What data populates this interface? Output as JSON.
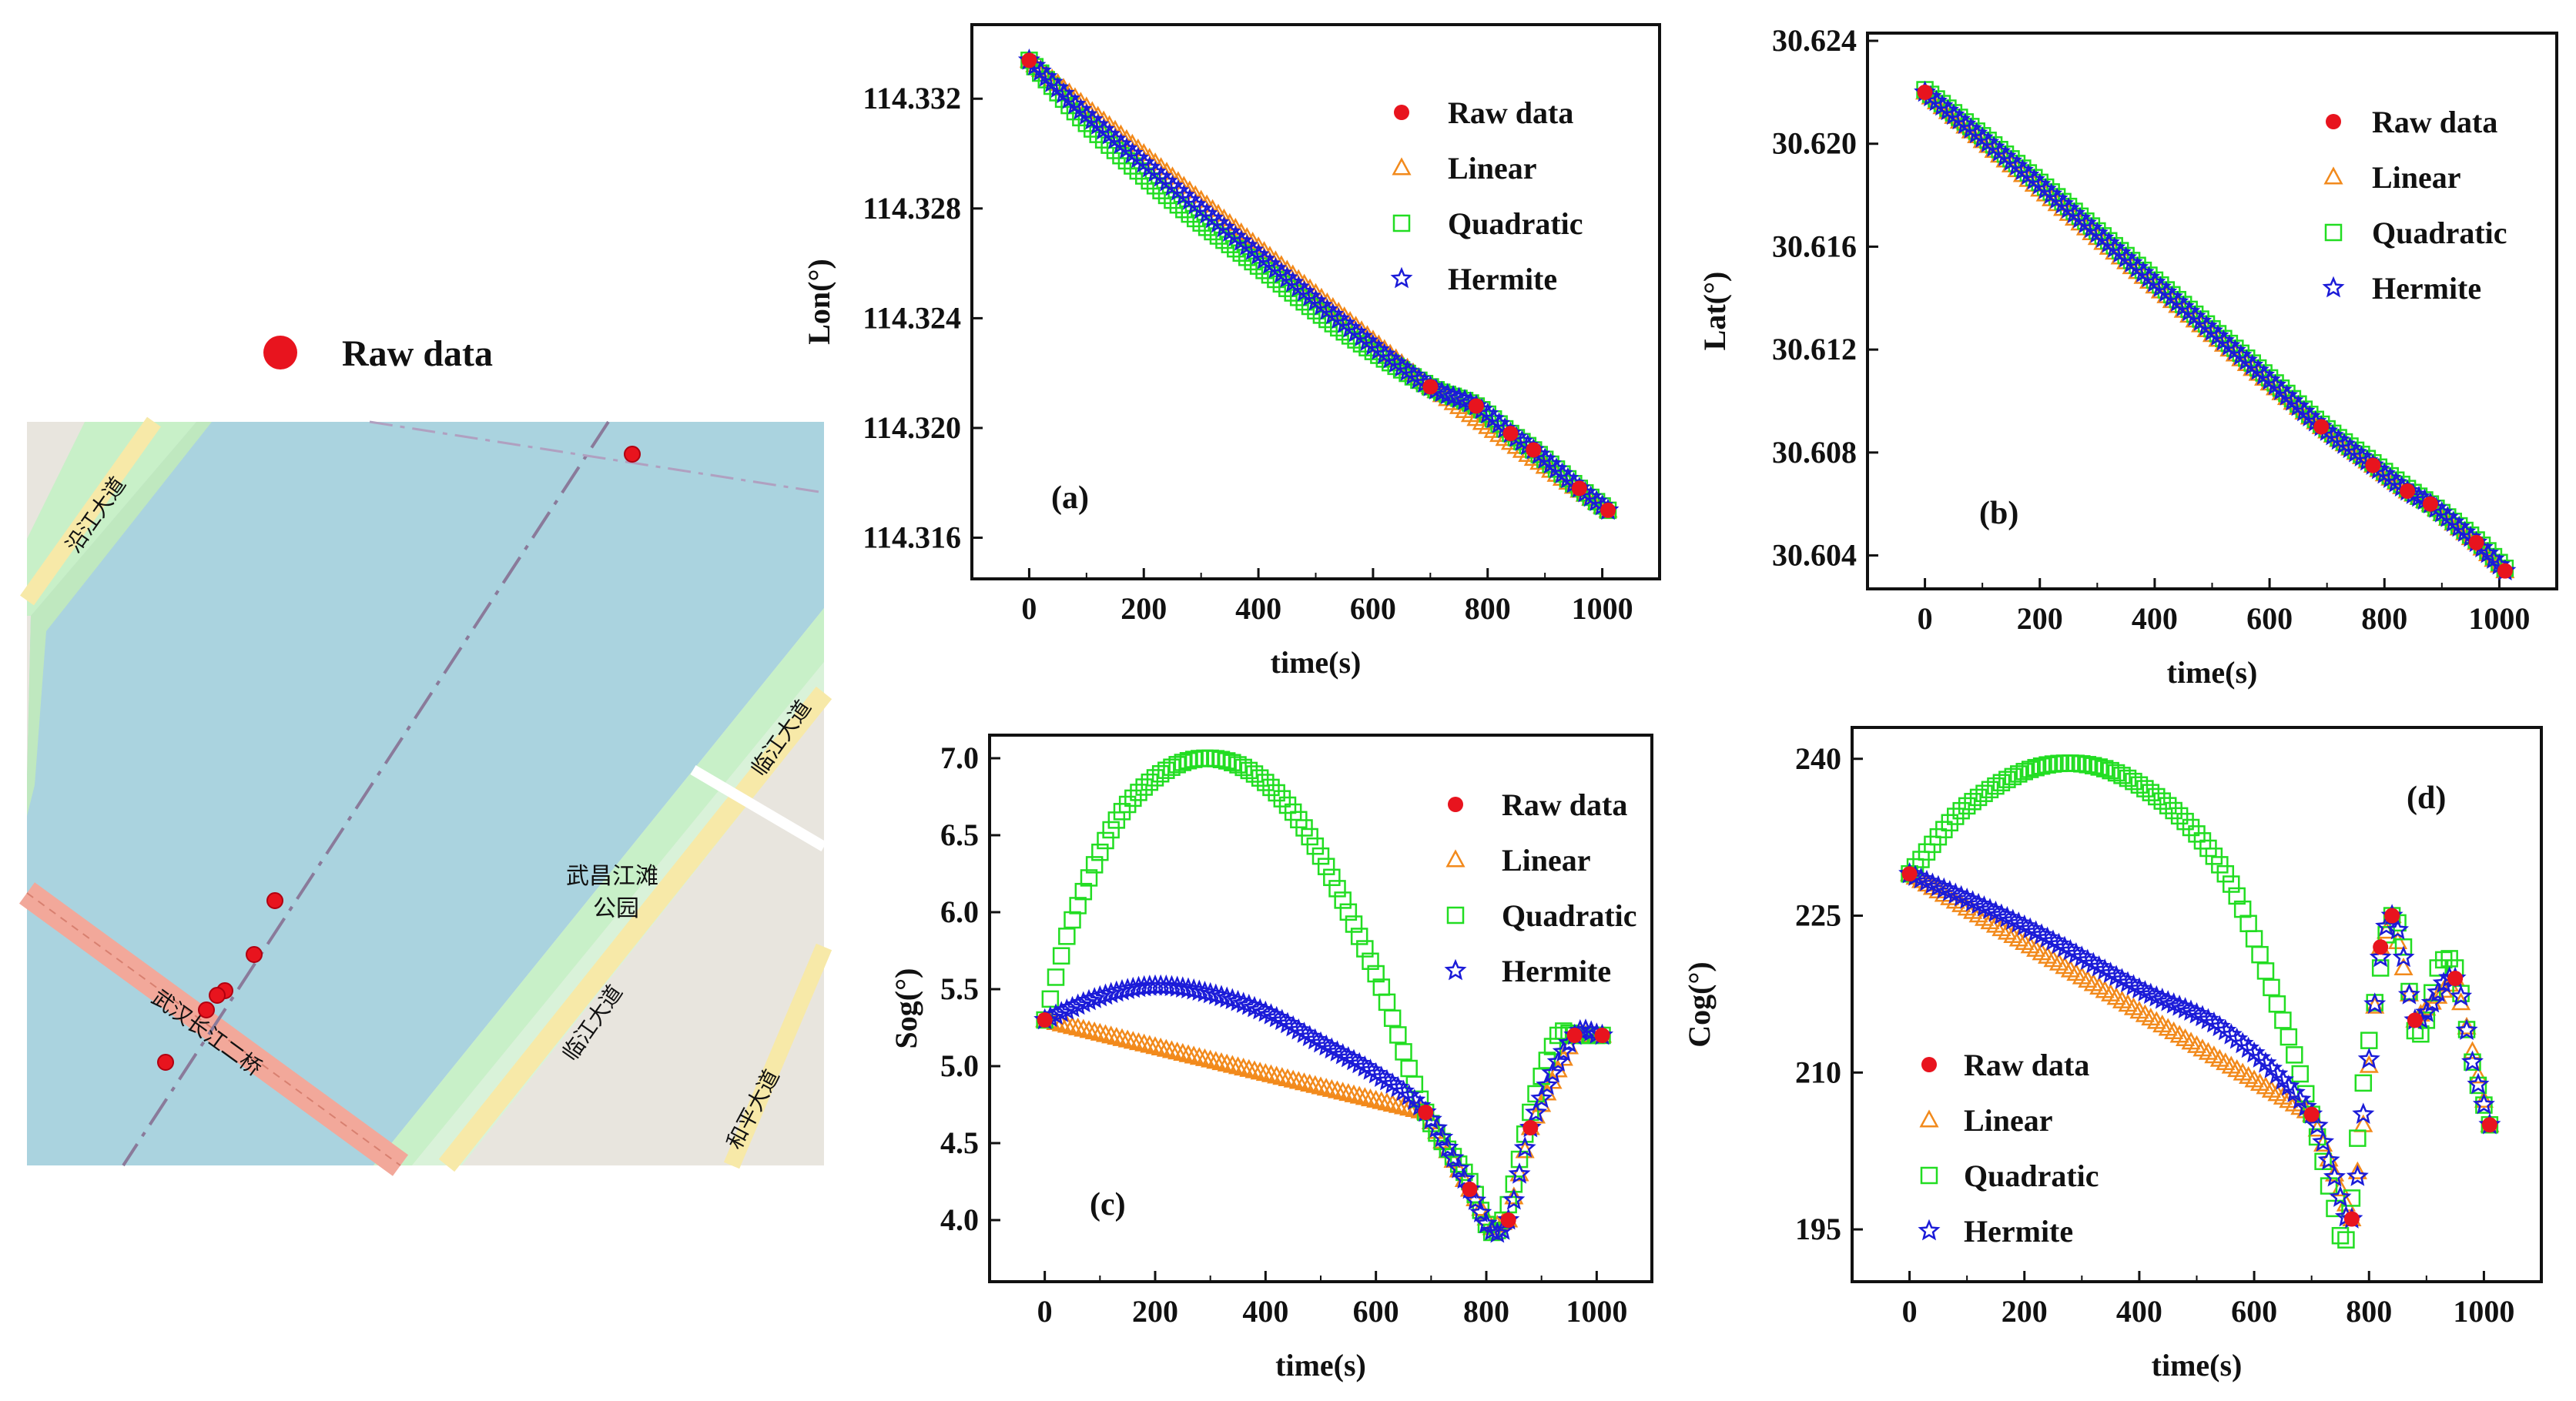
{
  "figure": {
    "map_legend_label": "Raw data",
    "map_labels": [
      "沿江大道",
      "武昌江滩",
      "公园",
      "临江大道",
      "临江大道",
      "和平大道",
      "武汉长江二桥"
    ],
    "colors": {
      "raw": "#e8141e",
      "linear": "#f28a1c",
      "quadratic": "#22dd22",
      "hermite": "#1b1bd8",
      "water": "#aad3df",
      "land": "#e8e5de",
      "park": "#c8f0c8",
      "road_yellow": "#f7e9a8",
      "bridge": "#f2a89a"
    }
  },
  "chart_data": [
    {
      "id": "a",
      "type": "scatter",
      "panel_label": "(a)",
      "xlabel": "time(s)",
      "ylabel": "Lon(°)",
      "xlim": [
        -100,
        1100
      ],
      "ylim": [
        114.3145,
        114.3347
      ],
      "xticks": [
        0,
        200,
        400,
        600,
        800,
        1000
      ],
      "yticks": [
        114.316,
        114.32,
        114.324,
        114.328,
        114.332
      ],
      "ytick_decimals": 3,
      "legend": [
        "Raw data",
        "Linear",
        "Quadratic",
        "Hermite"
      ],
      "raw": {
        "x": [
          0,
          700,
          780,
          840,
          880,
          960,
          1010
        ],
        "y": [
          114.3334,
          114.3215,
          114.3208,
          114.3198,
          114.3192,
          114.3178,
          114.317
        ]
      },
      "series": [
        {
          "name": "Linear",
          "knots_x": [
            0,
            700,
            1010
          ],
          "knots_y": [
            114.3334,
            114.3215,
            114.317
          ]
        },
        {
          "name": "Quadratic",
          "knots_x": [
            0,
            100,
            250,
            400,
            550,
            700,
            780,
            840,
            880,
            960,
            1010
          ],
          "knots_y": [
            114.3334,
            114.3311,
            114.3283,
            114.3259,
            114.3235,
            114.3215,
            114.3208,
            114.3198,
            114.3192,
            114.3178,
            114.317
          ]
        },
        {
          "name": "Hermite",
          "knots_x": [
            0,
            100,
            250,
            400,
            550,
            700,
            780,
            840,
            880,
            960,
            1010
          ],
          "knots_y": [
            114.3334,
            114.3314,
            114.3288,
            114.3263,
            114.3238,
            114.3215,
            114.3208,
            114.3198,
            114.3192,
            114.3178,
            114.317
          ]
        }
      ]
    },
    {
      "id": "b",
      "type": "scatter",
      "panel_label": "(b)",
      "xlabel": "time(s)",
      "ylabel": "Lat(°)",
      "xlim": [
        -100,
        1100
      ],
      "ylim": [
        30.6027,
        30.6243
      ],
      "xticks": [
        0,
        200,
        400,
        600,
        800,
        1000
      ],
      "yticks": [
        30.604,
        30.608,
        30.612,
        30.616,
        30.62,
        30.624
      ],
      "ytick_decimals": 3,
      "legend": [
        "Raw data",
        "Linear",
        "Quadratic",
        "Hermite"
      ],
      "raw": {
        "x": [
          0,
          690,
          780,
          840,
          880,
          960,
          1010
        ],
        "y": [
          30.622,
          30.609,
          30.6075,
          30.6065,
          30.606,
          30.6045,
          30.6034
        ]
      },
      "series": [
        {
          "name": "Linear",
          "knots_x": [
            0,
            690,
            780,
            840,
            880,
            960,
            1010
          ],
          "knots_y": [
            30.622,
            30.609,
            30.6075,
            30.6065,
            30.606,
            30.6045,
            30.6034
          ]
        },
        {
          "name": "Quadratic",
          "knots_x": [
            0,
            200,
            400,
            600,
            690,
            780,
            840,
            880,
            960,
            1010
          ],
          "knots_y": [
            30.6221,
            30.6185,
            30.6147,
            30.6109,
            30.6091,
            30.6076,
            30.6066,
            30.606,
            30.6046,
            30.6035
          ]
        },
        {
          "name": "Hermite",
          "knots_x": [
            0,
            200,
            400,
            600,
            690,
            780,
            840,
            880,
            960,
            1010
          ],
          "knots_y": [
            30.622,
            30.6184,
            30.6146,
            30.6108,
            30.609,
            30.6075,
            30.6065,
            30.606,
            30.6045,
            30.6034
          ]
        }
      ]
    },
    {
      "id": "c",
      "type": "scatter",
      "panel_label": "(c)",
      "xlabel": "time(s)",
      "ylabel": "Sog(°)",
      "xlim": [
        -100,
        1100
      ],
      "ylim": [
        3.6,
        7.15
      ],
      "xticks": [
        0,
        200,
        400,
        600,
        800,
        1000
      ],
      "yticks": [
        4.0,
        4.5,
        5.0,
        5.5,
        6.0,
        6.5,
        7.0
      ],
      "ytick_decimals": 1,
      "legend": [
        "Raw data",
        "Linear",
        "Quadratic",
        "Hermite"
      ],
      "raw": {
        "x": [
          0,
          690,
          770,
          840,
          880,
          960,
          1010
        ],
        "y": [
          5.3,
          4.7,
          4.2,
          4.0,
          4.6,
          5.2,
          5.2
        ]
      },
      "series": [
        {
          "name": "Linear",
          "knots_x": [
            0,
            690,
            770,
            810,
            840,
            880,
            960,
            1010
          ],
          "knots_y": [
            5.3,
            4.7,
            4.2,
            3.95,
            4.0,
            4.6,
            5.2,
            5.2
          ]
        },
        {
          "name": "Quadratic",
          "knots_x": [
            0,
            50,
            150,
            300,
            450,
            600,
            690,
            770,
            810,
            840,
            880,
            930,
            960,
            1010
          ],
          "knots_y": [
            5.3,
            5.95,
            6.7,
            7.0,
            6.65,
            5.6,
            4.7,
            4.25,
            3.92,
            4.1,
            4.7,
            5.2,
            5.2,
            5.2
          ]
        },
        {
          "name": "Hermite",
          "knots_x": [
            0,
            100,
            200,
            300,
            400,
            500,
            600,
            690,
            770,
            810,
            840,
            880,
            960,
            1010
          ],
          "knots_y": [
            5.3,
            5.45,
            5.52,
            5.47,
            5.35,
            5.15,
            4.95,
            4.7,
            4.2,
            3.93,
            4.0,
            4.6,
            5.2,
            5.2
          ]
        }
      ]
    },
    {
      "id": "d",
      "type": "scatter",
      "panel_label": "(d)",
      "xlabel": "time(s)",
      "ylabel": "Cog(°)",
      "xlim": [
        -100,
        1100
      ],
      "ylim": [
        190,
        243
      ],
      "xticks": [
        0,
        200,
        400,
        600,
        800,
        1000
      ],
      "yticks": [
        195,
        210,
        225,
        240
      ],
      "ytick_decimals": 0,
      "legend": [
        "Raw data",
        "Linear",
        "Quadratic",
        "Hermite"
      ],
      "raw": {
        "x": [
          0,
          700,
          770,
          820,
          840,
          880,
          950,
          1010
        ],
        "y": [
          229,
          206,
          196,
          222,
          225,
          215,
          219,
          205
        ]
      },
      "series": [
        {
          "name": "Linear",
          "knots_x": [
            0,
            700,
            770,
            790,
            820,
            840,
            880,
            950,
            1010
          ],
          "knots_y": [
            229,
            206,
            196,
            205,
            222,
            225,
            215,
            219,
            205
          ]
        },
        {
          "name": "Quadratic",
          "knots_x": [
            0,
            100,
            250,
            400,
            550,
            650,
            700,
            740,
            760,
            790,
            820,
            840,
            860,
            880,
            900,
            920,
            950,
            980,
            1010
          ],
          "knots_y": [
            229,
            235.5,
            239.5,
            237.5,
            229,
            215,
            206,
            197,
            194,
            209,
            220,
            225,
            222,
            214,
            215,
            220,
            220,
            211,
            205
          ]
        },
        {
          "name": "Hermite",
          "knots_x": [
            0,
            200,
            400,
            550,
            700,
            740,
            770,
            790,
            820,
            840,
            860,
            880,
            950,
            980,
            1010
          ],
          "knots_y": [
            229,
            224,
            218,
            214,
            206,
            200,
            196,
            206,
            221,
            225,
            221,
            215,
            219,
            211,
            205
          ]
        }
      ]
    }
  ]
}
